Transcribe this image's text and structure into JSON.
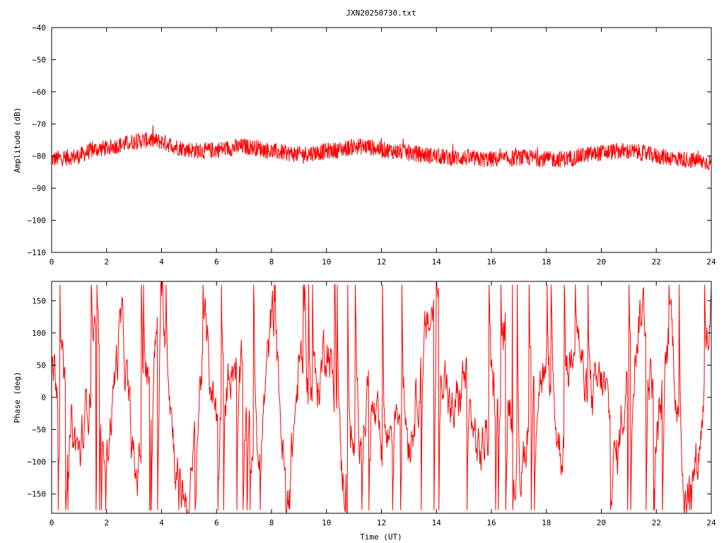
{
  "title": "JXN20250730.txt",
  "colors": {
    "series": "#ff0000",
    "axis": "#000000",
    "background": "#ffffff"
  },
  "chart_data": [
    {
      "type": "line",
      "panel": "top",
      "title": "JXN20250730.txt",
      "xlabel": "",
      "ylabel": "Amplitude (dB)",
      "xlim": [
        0,
        24
      ],
      "ylim": [
        -110,
        -40
      ],
      "xticks": [
        0,
        2,
        4,
        6,
        8,
        10,
        12,
        14,
        16,
        18,
        20,
        22,
        24
      ],
      "yticks": [
        -110,
        -100,
        -90,
        -80,
        -70,
        -60,
        -50,
        -40
      ],
      "grid": false,
      "legend": "none",
      "noise_band_db": 2.6,
      "series": [
        {
          "x": [
            0,
            0.5,
            1,
            1.5,
            2,
            2.5,
            3,
            3.5,
            4,
            4.5,
            5,
            5.5,
            6,
            6.5,
            7,
            7.5,
            8,
            8.5,
            9,
            9.5,
            10,
            10.5,
            11,
            11.5,
            12,
            12.5,
            13,
            13.5,
            14,
            14.5,
            15,
            15.5,
            16,
            16.5,
            17,
            17.5,
            18,
            18.5,
            19,
            19.5,
            20,
            20.5,
            21,
            21.5,
            22,
            22.5,
            23,
            23.5,
            24
          ],
          "y": [
            -81,
            -80.5,
            -80,
            -78,
            -77.5,
            -76.5,
            -75.5,
            -75,
            -75.5,
            -77,
            -78,
            -78.5,
            -78,
            -77.5,
            -77,
            -77.5,
            -78.5,
            -79,
            -79.5,
            -79,
            -78.5,
            -78,
            -77,
            -77,
            -78,
            -78.5,
            -79,
            -79.5,
            -80,
            -80.5,
            -80.5,
            -81,
            -81,
            -81,
            -80.5,
            -80.5,
            -81,
            -81,
            -80.5,
            -79.5,
            -79,
            -78.5,
            -78.5,
            -79,
            -80,
            -80.5,
            -81,
            -81.5,
            -82
          ]
        }
      ]
    },
    {
      "type": "line",
      "panel": "bottom",
      "xlabel": "Time (UT)",
      "ylabel": "Phase (deg)",
      "xlim": [
        0,
        24
      ],
      "ylim": [
        -180,
        180
      ],
      "xticks": [
        0,
        2,
        4,
        6,
        8,
        10,
        12,
        14,
        16,
        18,
        20,
        22,
        24
      ],
      "yticks": [
        -150,
        -100,
        -50,
        0,
        50,
        100,
        150
      ],
      "grid": false,
      "legend": "none",
      "series": [
        {
          "x": [
            0,
            0.5,
            1,
            1.5,
            2,
            2.5,
            3,
            3.5,
            4,
            4.5,
            5,
            5.5,
            6,
            6.5,
            7,
            7.5,
            8,
            8.5,
            9,
            9.5,
            10,
            10.5,
            11,
            11.5,
            12,
            12.5,
            13,
            13.5,
            14,
            14.5,
            15,
            15.5,
            16,
            16.5,
            17,
            17.5,
            18,
            18.5,
            19,
            19.5,
            20,
            20.5,
            21,
            21.5,
            22,
            22.5,
            23,
            23.5,
            24
          ],
          "y": [
            60,
            -20,
            -100,
            80,
            -60,
            120,
            -150,
            40,
            150,
            -120,
            -170,
            100,
            -40,
            70,
            20,
            -80,
            130,
            -160,
            60,
            -30,
            110,
            -140,
            -90,
            30,
            -120,
            10,
            -60,
            90,
            160,
            -50,
            40,
            -100,
            -20,
            80,
            -150,
            60,
            20,
            -90,
            140,
            -40,
            30,
            -110,
            80,
            150,
            -60,
            120,
            -170,
            -80,
            150
          ]
        }
      ]
    }
  ]
}
